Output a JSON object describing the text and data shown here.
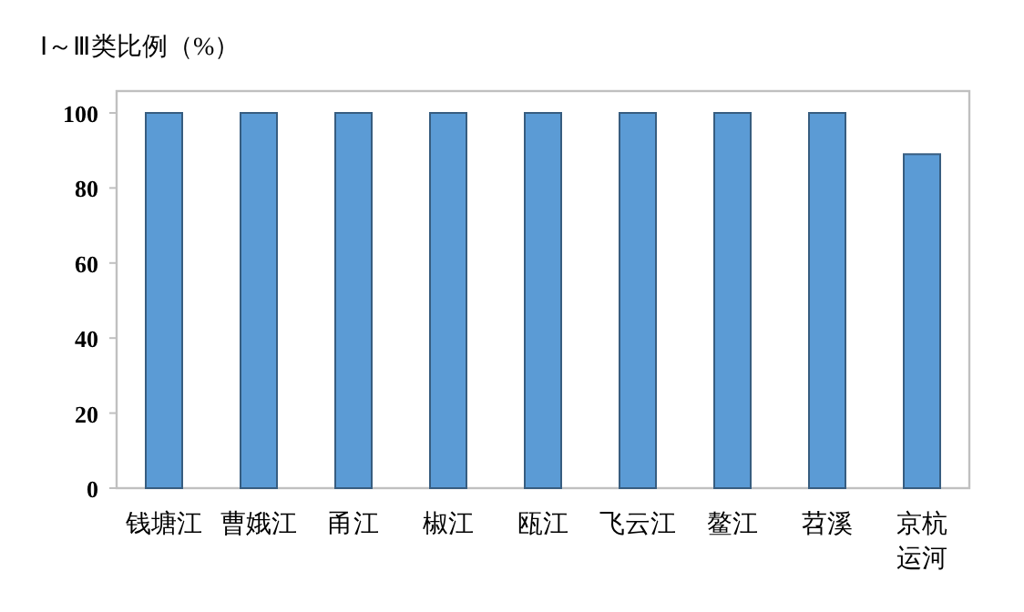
{
  "chart_data": {
    "type": "bar",
    "title": "Ⅰ～Ⅲ类比例（%）",
    "categories": [
      "钱塘江",
      "曹娥江",
      "甬江",
      "椒江",
      "瓯江",
      "飞云江",
      "鳌江",
      "苕溪",
      "京杭运河"
    ],
    "values": [
      100,
      100,
      100,
      100,
      100,
      100,
      100,
      100,
      89
    ],
    "color": "#5b9bd5",
    "ylim": [
      0,
      100
    ],
    "yticks": [
      0,
      20,
      40,
      60,
      80,
      100
    ]
  }
}
